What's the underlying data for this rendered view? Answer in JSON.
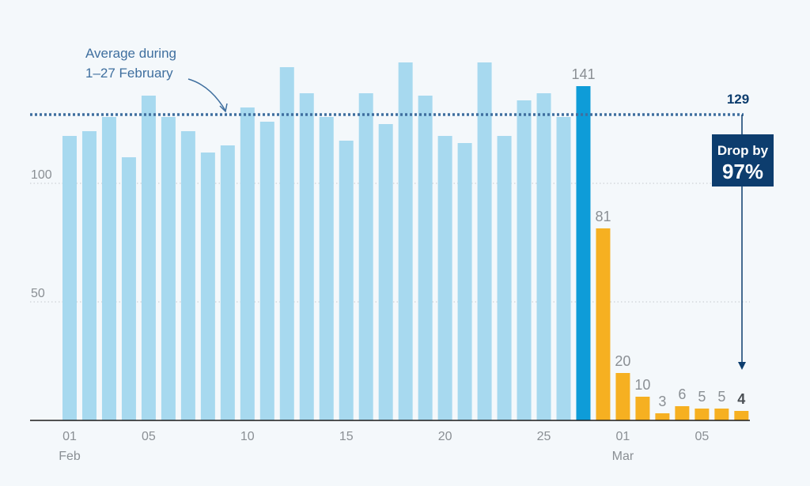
{
  "colors": {
    "background": "#f4f8fb",
    "bar_feb": "#a7d9ef",
    "bar_peak": "#0e9cd8",
    "bar_mar": "#f6b021",
    "avg_line": "#3f6f9f",
    "dark_blue": "#0d3d6e",
    "grid": "#c4c8cc",
    "tick_text": "#8a8f94"
  },
  "chart_data": {
    "type": "bar",
    "title": "",
    "xlabel": "",
    "ylabel": "",
    "ylim": [
      0,
      150
    ],
    "yticks": [
      50,
      100
    ],
    "grid": true,
    "categories": [
      "Feb 01",
      "Feb 02",
      "Feb 03",
      "Feb 04",
      "Feb 05",
      "Feb 06",
      "Feb 07",
      "Feb 08",
      "Feb 09",
      "Feb 10",
      "Feb 11",
      "Feb 12",
      "Feb 13",
      "Feb 14",
      "Feb 15",
      "Feb 16",
      "Feb 17",
      "Feb 18",
      "Feb 19",
      "Feb 20",
      "Feb 21",
      "Feb 22",
      "Feb 23",
      "Feb 24",
      "Feb 25",
      "Feb 26",
      "Feb 27",
      "Feb 28",
      "Mar 01",
      "Mar 02",
      "Mar 03",
      "Mar 04",
      "Mar 05",
      "Mar 06",
      "Mar 07"
    ],
    "values": [
      120,
      122,
      128,
      111,
      137,
      128,
      122,
      113,
      116,
      132,
      126,
      149,
      138,
      128,
      118,
      138,
      125,
      151,
      137,
      120,
      117,
      151,
      120,
      135,
      138,
      128,
      141,
      81,
      20,
      10,
      3,
      6,
      5,
      5,
      4
    ],
    "groups": [
      "feb",
      "feb",
      "feb",
      "feb",
      "feb",
      "feb",
      "feb",
      "feb",
      "feb",
      "feb",
      "feb",
      "feb",
      "feb",
      "feb",
      "feb",
      "feb",
      "feb",
      "feb",
      "feb",
      "feb",
      "feb",
      "feb",
      "feb",
      "feb",
      "feb",
      "feb",
      "peak",
      "mar",
      "mar",
      "mar",
      "mar",
      "mar",
      "mar",
      "mar",
      "mar"
    ],
    "x_tick_labels": [
      {
        "index": 0,
        "label": "01",
        "sublabel": "Feb"
      },
      {
        "index": 4,
        "label": "05",
        "sublabel": ""
      },
      {
        "index": 9,
        "label": "10",
        "sublabel": ""
      },
      {
        "index": 14,
        "label": "15",
        "sublabel": ""
      },
      {
        "index": 19,
        "label": "20",
        "sublabel": ""
      },
      {
        "index": 24,
        "label": "25",
        "sublabel": ""
      },
      {
        "index": 28,
        "label": "01",
        "sublabel": "Mar"
      },
      {
        "index": 32,
        "label": "05",
        "sublabel": ""
      }
    ],
    "data_labels": [
      {
        "index": 26,
        "label": "141",
        "bold": false
      },
      {
        "index": 27,
        "label": "81",
        "bold": false
      },
      {
        "index": 28,
        "label": "20",
        "bold": false
      },
      {
        "index": 29,
        "label": "10",
        "bold": false
      },
      {
        "index": 30,
        "label": "3",
        "bold": false
      },
      {
        "index": 31,
        "label": "6",
        "bold": false
      },
      {
        "index": 32,
        "label": "5",
        "bold": false
      },
      {
        "index": 33,
        "label": "5",
        "bold": false
      },
      {
        "index": 34,
        "label": "4",
        "bold": true
      }
    ],
    "average": {
      "value": 129,
      "label": "129",
      "annotation_line1": "Average during",
      "annotation_line2": "1–27 February"
    },
    "drop": {
      "line1": "Drop by",
      "line2": "97%"
    }
  }
}
